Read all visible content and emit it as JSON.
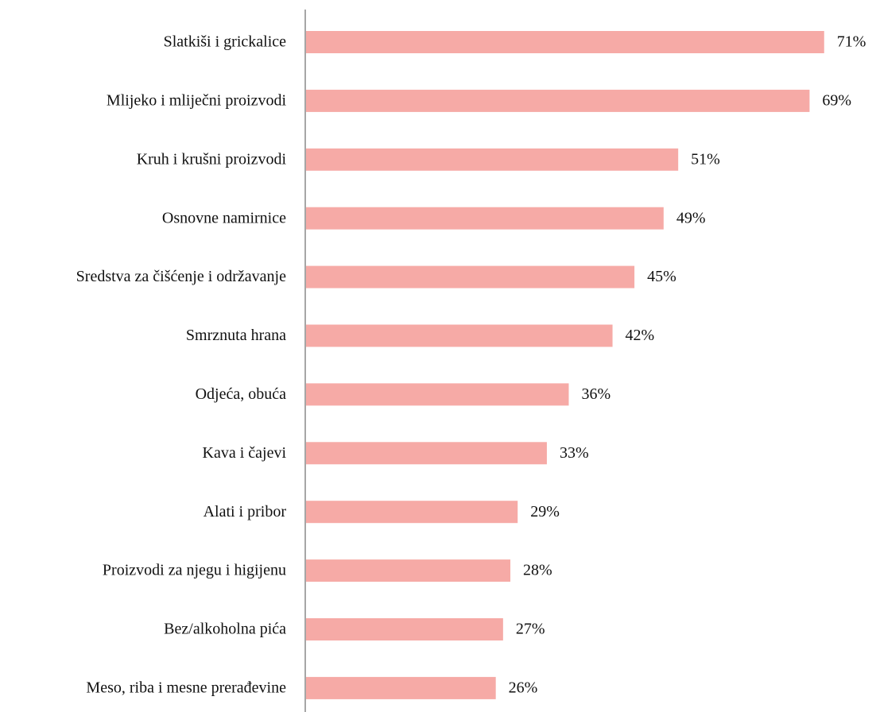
{
  "chart_data": {
    "type": "bar",
    "orientation": "horizontal",
    "categories": [
      "Slatkiši i grickalice",
      "Mlijeko i mliječni proizvodi",
      "Kruh i krušni proizvodi",
      "Osnovne namirnice",
      "Sredstva za čišćenje i održavanje",
      "Smrznuta hrana",
      "Odjeća, obuća",
      "Kava i čajevi",
      "Alati i pribor",
      "Proizvodi za njegu i higijenu",
      "Bez/alkoholna pića",
      "Meso, riba i mesne prerađevine"
    ],
    "values": [
      71,
      69,
      51,
      49,
      45,
      42,
      36,
      33,
      29,
      28,
      27,
      26
    ],
    "value_labels": [
      "71%",
      "69%",
      "51%",
      "49%",
      "45%",
      "42%",
      "36%",
      "33%",
      "29%",
      "28%",
      "27%",
      "26%"
    ],
    "color": "#f6aaa6"
  }
}
